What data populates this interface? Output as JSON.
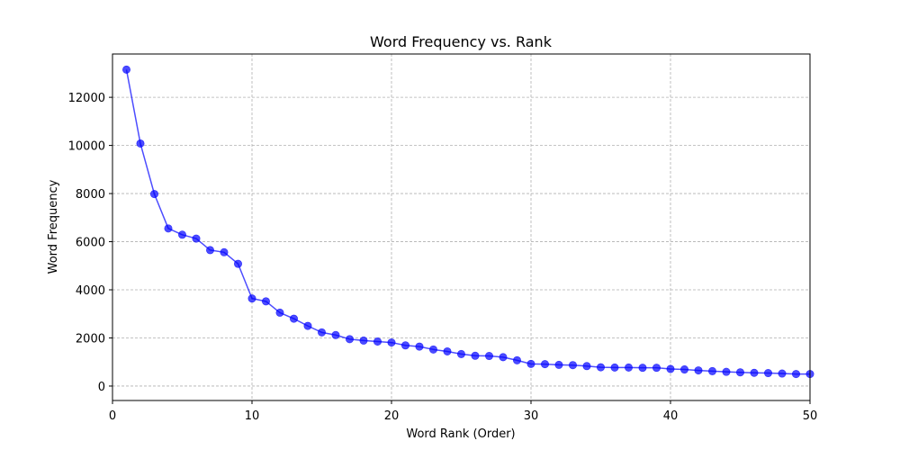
{
  "chart_data": {
    "type": "line",
    "title": "Word Frequency vs. Rank",
    "xlabel": "Word Rank (Order)",
    "ylabel": "Word Frequency",
    "xlim": [
      0,
      50
    ],
    "ylim": [
      -600,
      13800
    ],
    "xticks": [
      0,
      10,
      20,
      30,
      40,
      50
    ],
    "yticks": [
      0,
      2000,
      4000,
      6000,
      8000,
      10000,
      12000
    ],
    "grid": true,
    "legend": "none",
    "series": [
      {
        "color": "#0000ff",
        "marker": "circle",
        "x": [
          1,
          2,
          3,
          4,
          5,
          6,
          7,
          8,
          9,
          10,
          11,
          12,
          13,
          14,
          15,
          16,
          17,
          18,
          19,
          20,
          21,
          22,
          23,
          24,
          25,
          26,
          27,
          28,
          29,
          30,
          31,
          32,
          33,
          34,
          35,
          36,
          37,
          38,
          39,
          40,
          41,
          42,
          43,
          44,
          45,
          46,
          47,
          48,
          49,
          50
        ],
        "y": [
          13150,
          10080,
          7980,
          6550,
          6290,
          6130,
          5650,
          5560,
          5080,
          3640,
          3520,
          3050,
          2800,
          2500,
          2230,
          2120,
          1950,
          1890,
          1850,
          1810,
          1690,
          1640,
          1520,
          1440,
          1330,
          1260,
          1250,
          1200,
          1070,
          920,
          910,
          880,
          870,
          830,
          780,
          770,
          770,
          760,
          760,
          710,
          690,
          650,
          620,
          590,
          570,
          550,
          540,
          520,
          500,
          500
        ]
      }
    ]
  }
}
